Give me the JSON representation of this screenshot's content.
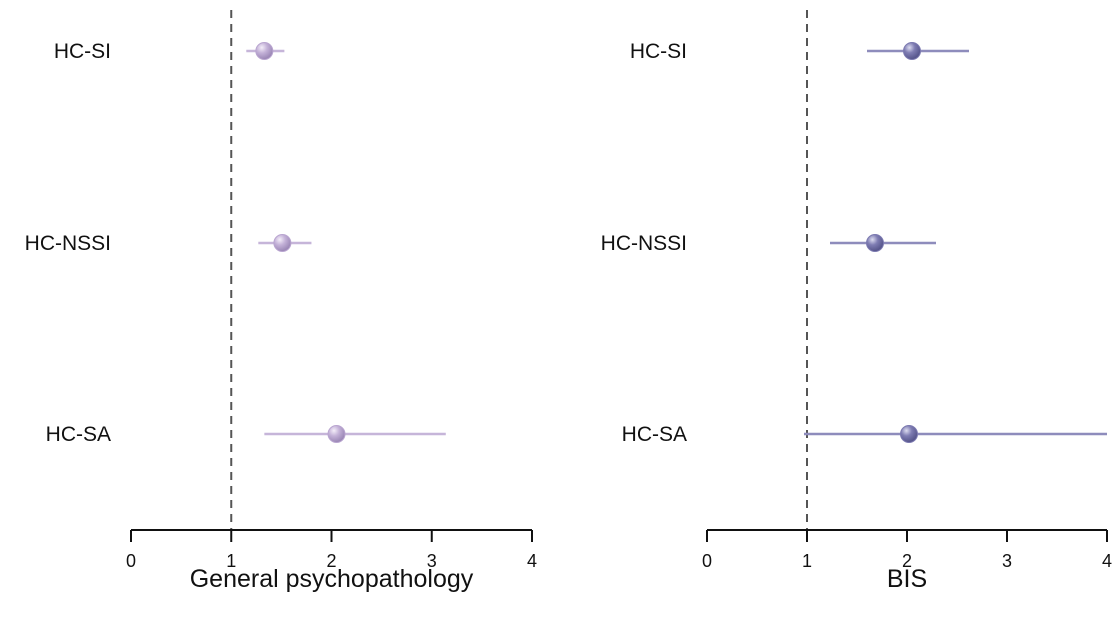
{
  "chart_data": [
    {
      "type": "forest",
      "xlabel": "General psychopathology",
      "xlim": [
        0,
        4
      ],
      "xticks": [
        0,
        1,
        2,
        3,
        4
      ],
      "reference_line": 1,
      "categories": [
        "HC-SI",
        "HC-NSSI",
        "HC-SA"
      ],
      "estimates": [
        1.33,
        1.51,
        2.05
      ],
      "ci_lower": [
        1.15,
        1.27,
        1.33
      ],
      "ci_upper": [
        1.53,
        1.8,
        3.14
      ],
      "color": "#c6b5d9",
      "point_color": "#b9a5d0"
    },
    {
      "type": "forest",
      "xlabel": "BIS",
      "xlim": [
        0,
        4
      ],
      "xticks": [
        0,
        1,
        2,
        3,
        4
      ],
      "reference_line": 1,
      "categories": [
        "HC-SI",
        "HC-NSSI",
        "HC-SA"
      ],
      "estimates": [
        2.05,
        1.68,
        2.02
      ],
      "ci_lower": [
        1.6,
        1.23,
        0.97
      ],
      "ci_upper": [
        2.62,
        2.29,
        4.0
      ],
      "color": "#8e8cbc",
      "point_color": "#7b79b0"
    }
  ]
}
